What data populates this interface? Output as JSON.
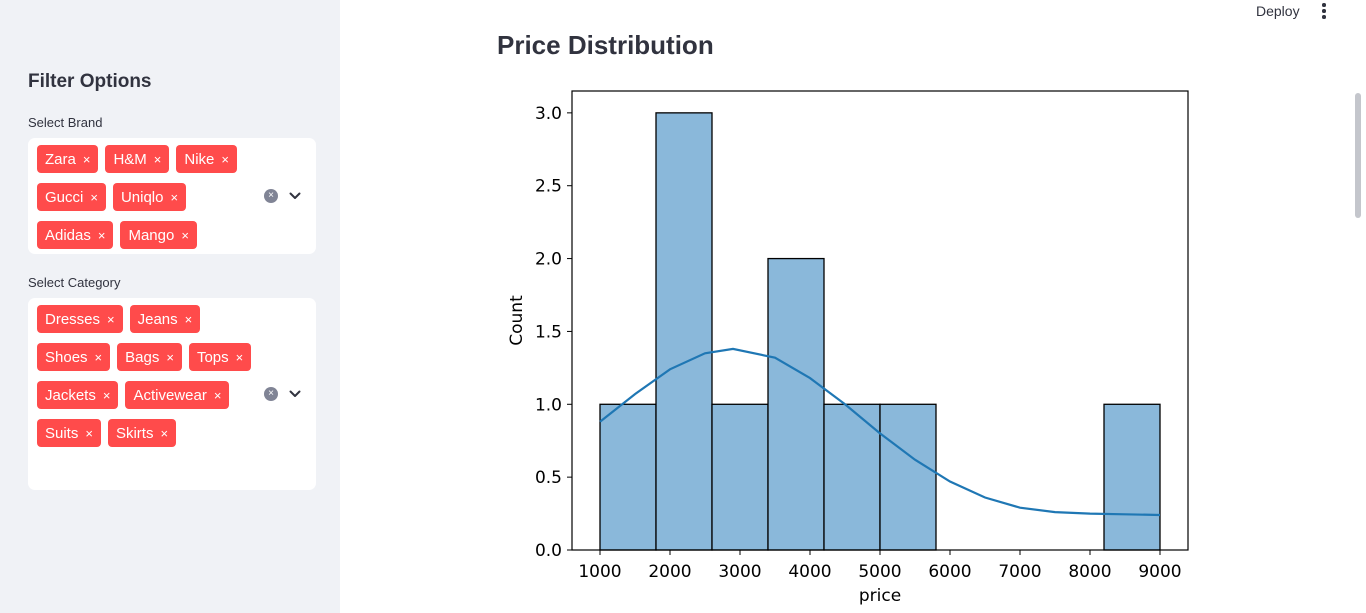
{
  "header": {
    "deploy_label": "Deploy"
  },
  "sidebar": {
    "title": "Filter Options",
    "brand_filter": {
      "label": "Select Brand",
      "selected": [
        "Zara",
        "H&M",
        "Nike",
        "Gucci",
        "Uniqlo",
        "Adidas",
        "Mango"
      ]
    },
    "category_filter": {
      "label": "Select Category",
      "selected": [
        "Dresses",
        "Jeans",
        "Shoes",
        "Bags",
        "Tops",
        "Jackets",
        "Activewear",
        "Suits",
        "Skirts"
      ]
    },
    "remove_glyph": "×",
    "clear_glyph": "×"
  },
  "main": {
    "title": "Price Distribution"
  },
  "colors": {
    "accent": "#ff4b4b",
    "bar_fill": "#8ab8da",
    "kde_line": "#1f77b4"
  },
  "chart_data": {
    "type": "histogram",
    "xlabel": "price",
    "ylabel": "Count",
    "xlim": [
      600,
      9400
    ],
    "ylim": [
      0,
      3.15
    ],
    "xticks": [
      1000,
      2000,
      3000,
      4000,
      5000,
      6000,
      7000,
      8000,
      9000
    ],
    "yticks": [
      "0.0",
      "0.5",
      "1.0",
      "1.5",
      "2.0",
      "2.5",
      "3.0"
    ],
    "bins": [
      {
        "start": 1000,
        "end": 1800,
        "count": 1
      },
      {
        "start": 1800,
        "end": 2600,
        "count": 3
      },
      {
        "start": 2600,
        "end": 3400,
        "count": 1
      },
      {
        "start": 3400,
        "end": 4200,
        "count": 2
      },
      {
        "start": 4200,
        "end": 5000,
        "count": 1
      },
      {
        "start": 5000,
        "end": 5800,
        "count": 1
      },
      {
        "start": 5800,
        "end": 6600,
        "count": 0
      },
      {
        "start": 6600,
        "end": 7400,
        "count": 0
      },
      {
        "start": 7400,
        "end": 8200,
        "count": 0
      },
      {
        "start": 8200,
        "end": 9000,
        "count": 1
      }
    ],
    "kde": {
      "x": [
        1000,
        1500,
        2000,
        2500,
        2900,
        3500,
        4000,
        4500,
        5000,
        5500,
        6000,
        6500,
        7000,
        7500,
        8000,
        8500,
        9000
      ],
      "y": [
        0.88,
        1.07,
        1.24,
        1.35,
        1.38,
        1.32,
        1.18,
        1.0,
        0.8,
        0.62,
        0.47,
        0.36,
        0.29,
        0.26,
        0.25,
        0.245,
        0.24
      ]
    },
    "grid": false,
    "legend": "none"
  }
}
